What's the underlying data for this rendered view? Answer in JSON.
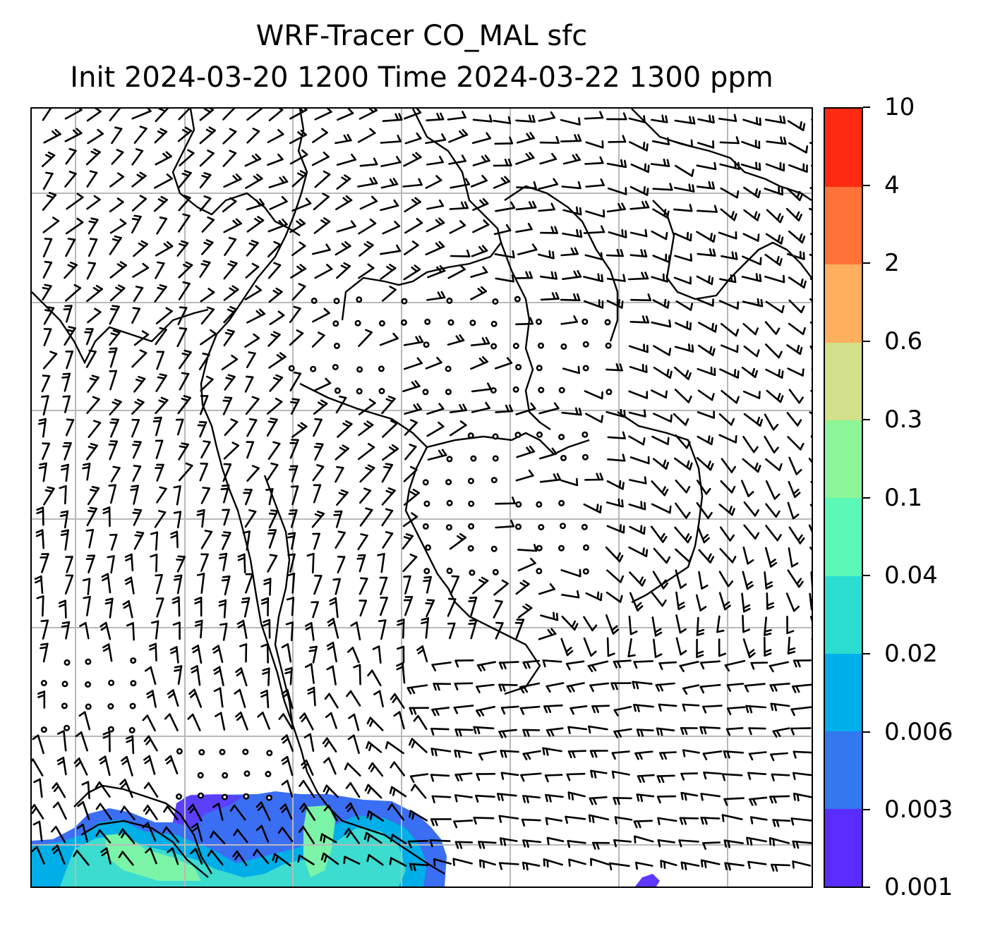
{
  "title": {
    "line1": "WRF-Tracer CO_MAL sfc",
    "line2": "Init 2024-03-20 1200 Time 2024-03-22 1300 ppm"
  },
  "colorbar": {
    "levels": [
      "0.001",
      "0.003",
      "0.006",
      "0.02",
      "0.04",
      "0.1",
      "0.3",
      "0.6",
      "2",
      "4",
      "10"
    ],
    "colors": [
      "#5b2cff",
      "#3478f0",
      "#00b0ea",
      "#2cdcd0",
      "#5cf8b8",
      "#8cf598",
      "#d3e08a",
      "#ffaf5e",
      "#ff7238",
      "#ff2a12"
    ]
  },
  "map": {
    "gridlines": true,
    "gridline_color": "#b8b8b8",
    "coastline_color": "#000000",
    "field_colors": {
      "low": "#6038ff",
      "mid": "#3870f5",
      "high": "#00aee8",
      "green": "#7cf4a8",
      "cyan": "#3cdcd0"
    }
  }
}
